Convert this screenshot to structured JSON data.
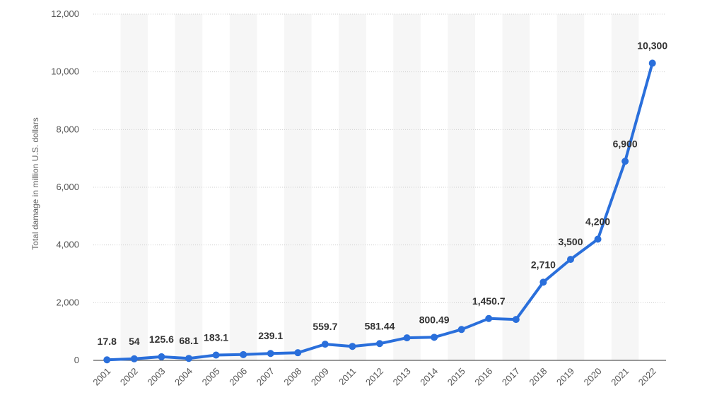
{
  "chart_data": {
    "type": "line",
    "title": "",
    "xlabel": "",
    "ylabel": "Total damage in million U.S. dollars",
    "ylim": [
      0,
      12000
    ],
    "yticks": [
      0,
      2000,
      4000,
      6000,
      8000,
      10000,
      12000
    ],
    "ytick_labels": [
      "0",
      "2,000",
      "4,000",
      "6,000",
      "8,000",
      "10,000",
      "12,000"
    ],
    "grid": true,
    "categories": [
      "2001",
      "2002",
      "2003",
      "2004",
      "2005",
      "2006",
      "2007",
      "2008",
      "2009",
      "2011",
      "2012",
      "2013",
      "2014",
      "2015",
      "2016",
      "2017",
      "2018",
      "2019",
      "2020",
      "2021",
      "2022"
    ],
    "series": [
      {
        "values": [
          17.8,
          54,
          125.6,
          68.1,
          183.1,
          200,
          239.1,
          265,
          559.7,
          485,
          581.44,
          781,
          800.49,
          1070,
          1450.7,
          1418,
          2710,
          3500,
          4200,
          6900,
          10300
        ],
        "labels": [
          "17.8",
          "54",
          "125.6",
          "68.1",
          "183.1",
          "",
          "239.1",
          "",
          "559.7",
          "",
          "581.44",
          "",
          "800.49",
          "",
          "1,450.7",
          "",
          "2,710",
          "3,500",
          "4,200",
          "6,900",
          "10,300"
        ]
      }
    ],
    "line_color": "#2a6fdb"
  }
}
